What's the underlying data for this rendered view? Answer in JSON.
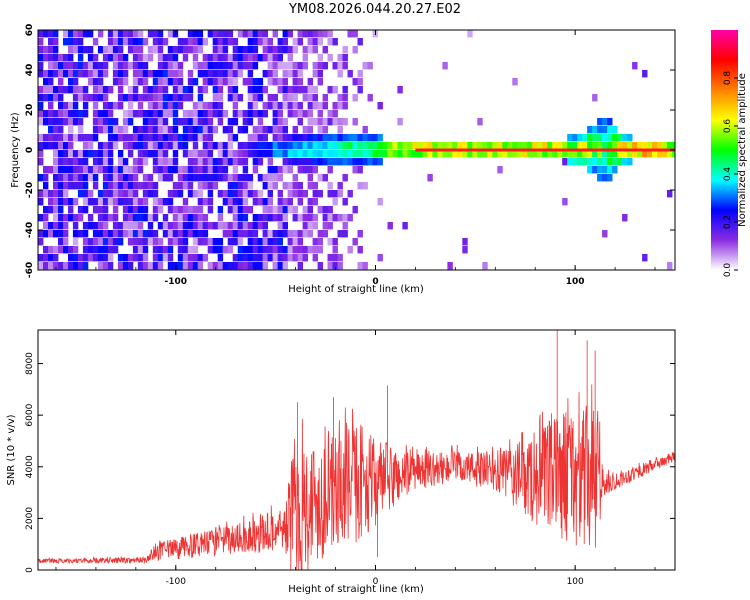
{
  "title": "YM08.2026.044.20.27.E02",
  "chart_data": [
    {
      "type": "heatmap",
      "name": "spectrogram",
      "xlabel": "Height of straight line (km)",
      "ylabel": "Frequency (Hz)",
      "xlim": [
        -169,
        150
      ],
      "ylim": [
        -60,
        60
      ],
      "xticks": [
        "-100",
        "0",
        "100"
      ],
      "yticks": [
        "60",
        "40",
        "20",
        "0",
        "-20",
        "-40",
        "-60"
      ],
      "colorbar": {
        "label": "Normalized spectral amplitude",
        "range": [
          0.0,
          1.0
        ],
        "ticks": [
          "0.0",
          "0.2",
          "0.4",
          "0.6",
          "0.8"
        ],
        "colormap": [
          "#ffffff",
          "#8a2be2",
          "#0000ff",
          "#00ffff",
          "#00ff00",
          "#ffff00",
          "#ff8000",
          "#ff0000",
          "#ff00aa"
        ]
      },
      "noise_region_km": [
        -169,
        0
      ],
      "noise_fade_km": [
        -45,
        5
      ],
      "signal_band": {
        "center_hz": 0,
        "start_km": -65,
        "widths": [
          {
            "x": -65,
            "half_width_hz": 1,
            "amp": 0.3
          },
          {
            "x": -45,
            "half_width_hz": 5,
            "amp": 0.4
          },
          {
            "x": -20,
            "half_width_hz": 7,
            "amp": 0.45
          },
          {
            "x": 0,
            "half_width_hz": 5,
            "amp": 0.6
          },
          {
            "x": 25,
            "half_width_hz": 2,
            "amp": 0.85
          },
          {
            "x": 70,
            "half_width_hz": 2,
            "amp": 0.85
          },
          {
            "x": 100,
            "half_width_hz": 5,
            "amp": 0.7
          },
          {
            "x": 115,
            "half_width_hz": 15,
            "amp": 0.55
          },
          {
            "x": 125,
            "half_width_hz": 5,
            "amp": 0.8
          },
          {
            "x": 150,
            "half_width_hz": 1,
            "amp": 0.95
          }
        ]
      }
    },
    {
      "type": "line",
      "name": "snr",
      "xlabel": "Height of straight line (km)",
      "ylabel": "SNR (10 * v/v)",
      "xlim": [
        -169,
        150
      ],
      "ylim": [
        0,
        9300
      ],
      "xticks": [
        "-100",
        "0",
        "100"
      ],
      "yticks": [
        "0",
        "2000",
        "4000",
        "6000",
        "8000"
      ],
      "color": "#ee3333",
      "envelope": [
        {
          "x": -169,
          "base": 350,
          "amp": 80
        },
        {
          "x": -115,
          "base": 380,
          "amp": 120
        },
        {
          "x": -110,
          "base": 700,
          "amp": 350
        },
        {
          "x": -70,
          "base": 1200,
          "amp": 600
        },
        {
          "x": -45,
          "base": 1600,
          "amp": 900
        },
        {
          "x": -42,
          "base": 2000,
          "amp": 2600
        },
        {
          "x": -35,
          "base": 2500,
          "amp": 2600
        },
        {
          "x": -20,
          "base": 3000,
          "amp": 2200
        },
        {
          "x": -10,
          "base": 3400,
          "amp": 2400
        },
        {
          "x": 0,
          "base": 3400,
          "amp": 1700
        },
        {
          "x": 20,
          "base": 3800,
          "amp": 700
        },
        {
          "x": 40,
          "base": 4000,
          "amp": 600
        },
        {
          "x": 60,
          "base": 3800,
          "amp": 800
        },
        {
          "x": 80,
          "base": 3500,
          "amp": 1800
        },
        {
          "x": 95,
          "base": 3700,
          "amp": 2600
        },
        {
          "x": 110,
          "base": 3400,
          "amp": 3000
        },
        {
          "x": 115,
          "base": 3300,
          "amp": 400
        },
        {
          "x": 125,
          "base": 3600,
          "amp": 300
        },
        {
          "x": 150,
          "base": 4400,
          "amp": 200
        }
      ],
      "spikes": [
        {
          "x": -39,
          "y": 6500
        },
        {
          "x": -21,
          "y": 6700
        },
        {
          "x": 6,
          "y": 7150
        },
        {
          "x": 91,
          "y": 9300
        },
        {
          "x": 106,
          "y": 8900
        },
        {
          "x": 110,
          "y": 8500
        },
        {
          "x": 1,
          "y": 500
        }
      ]
    }
  ]
}
